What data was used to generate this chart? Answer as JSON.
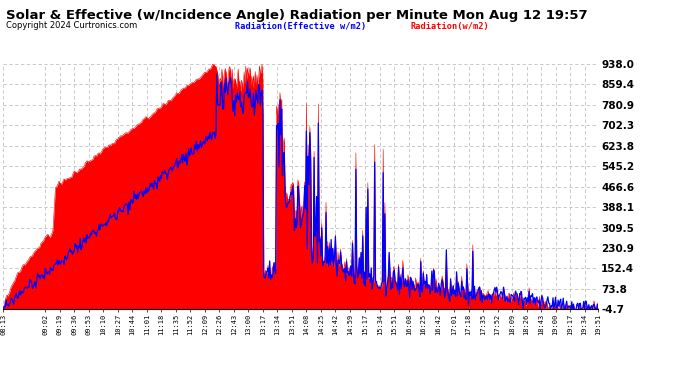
{
  "title": "Solar & Effective (w/Incidence Angle) Radiation per Minute Mon Aug 12 19:57",
  "copyright": "Copyright 2024 Curtronics.com",
  "legend_blue": "Radiation(Effective w/m2)",
  "legend_red": "Radiation(w/m2)",
  "background_color": "#ffffff",
  "plot_bg_color": "#ffffff",
  "grid_color": "#c0c0c0",
  "red_color": "#ff0000",
  "blue_color": "#0000ff",
  "y_min": -4.7,
  "y_max": 938.0,
  "y_ticks": [
    938.0,
    859.4,
    780.9,
    702.3,
    623.8,
    545.2,
    466.6,
    388.1,
    309.5,
    230.9,
    152.4,
    73.8,
    -4.7
  ],
  "x_labels": [
    "08:13",
    "09:02",
    "09:19",
    "09:36",
    "09:53",
    "10:10",
    "10:27",
    "10:44",
    "11:01",
    "11:18",
    "11:35",
    "11:52",
    "12:09",
    "12:26",
    "12:43",
    "13:00",
    "13:17",
    "13:34",
    "13:51",
    "14:08",
    "14:25",
    "14:42",
    "14:59",
    "15:17",
    "15:34",
    "15:51",
    "16:08",
    "16:25",
    "16:42",
    "17:01",
    "17:18",
    "17:35",
    "17:52",
    "18:09",
    "18:26",
    "18:43",
    "19:00",
    "19:17",
    "19:34",
    "19:51"
  ]
}
